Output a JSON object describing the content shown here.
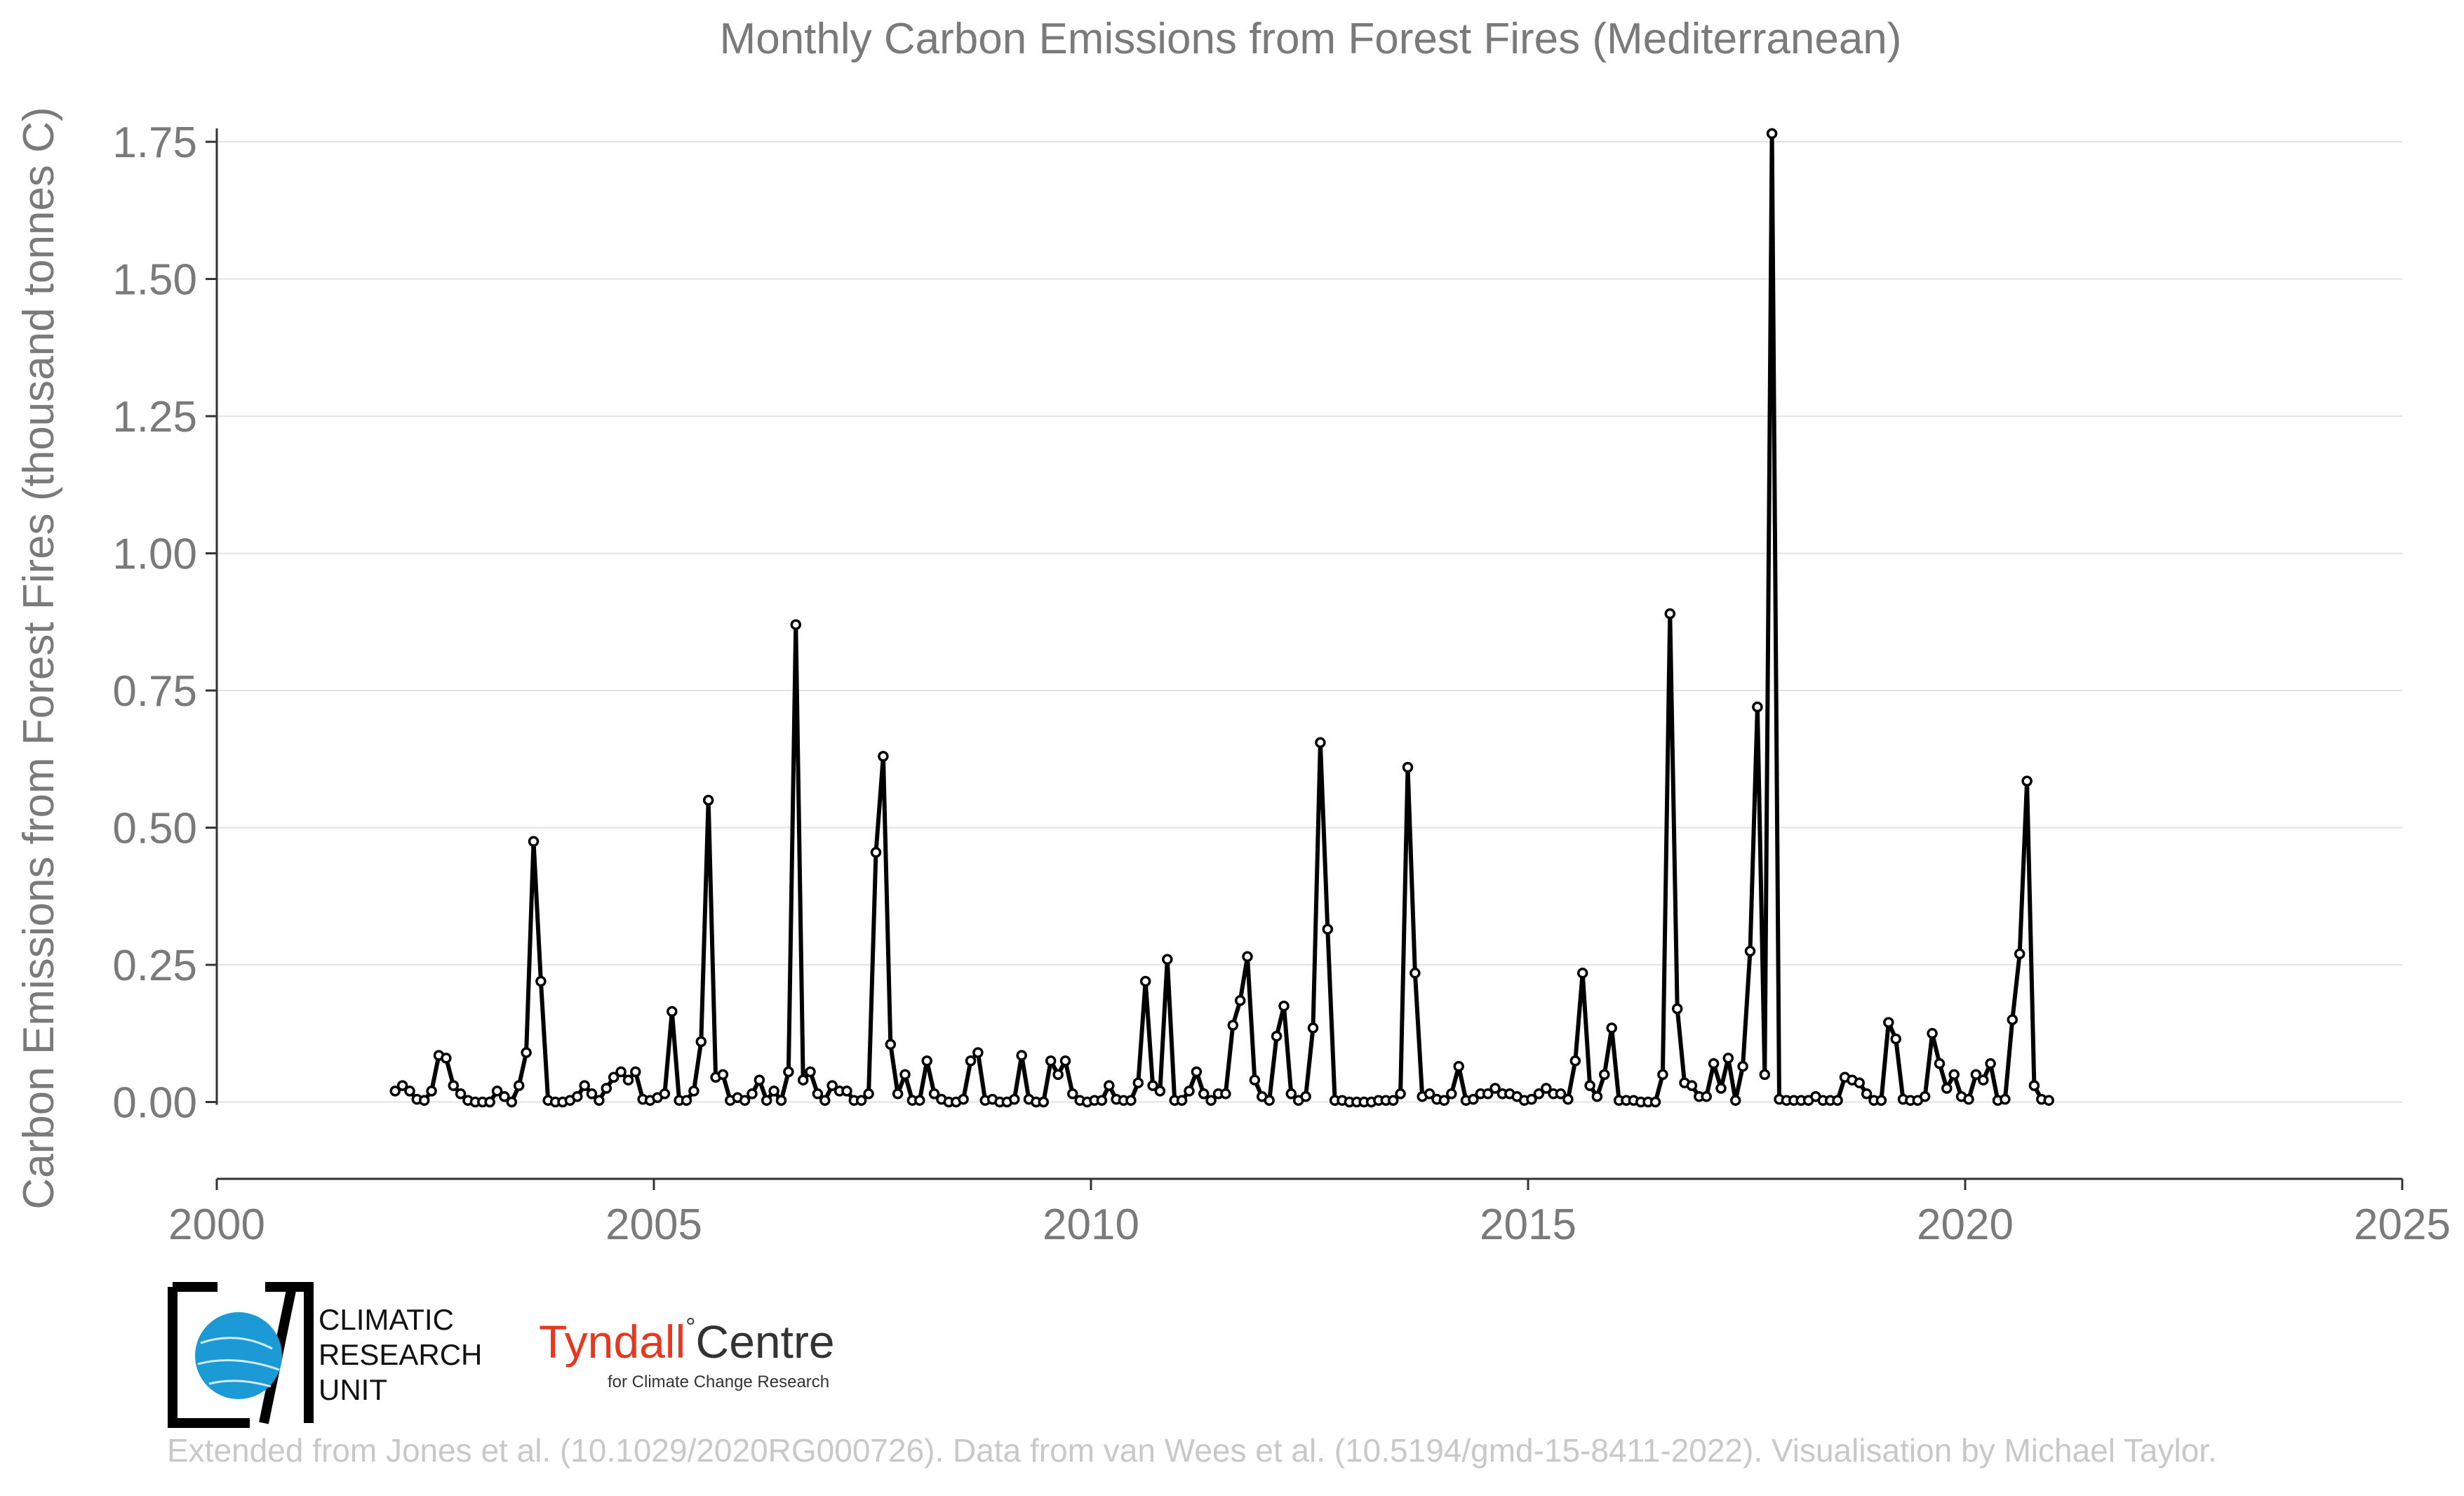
{
  "chart_data": {
    "type": "line",
    "title": "Monthly Carbon Emissions from Forest Fires (Mediterranean)",
    "xlabel": "",
    "ylabel": "Carbon Emissions from Forest Fires (thousand tonnes C)",
    "xlim": [
      2000,
      2025
    ],
    "ylim": [
      -0.14,
      1.8
    ],
    "x_ticks": [
      "2000",
      "2005",
      "2010",
      "2015",
      "2020",
      "2025"
    ],
    "y_ticks": [
      "0.00",
      "0.25",
      "0.50",
      "0.75",
      "1.00",
      "1.25",
      "1.50",
      "1.75"
    ],
    "grid": true,
    "legend": "none",
    "start": "2002-01",
    "series": [
      {
        "color": "#000000",
        "values": [
          0.02,
          0.03,
          0.02,
          0.005,
          0.003,
          0.02,
          0.085,
          0.08,
          0.03,
          0.015,
          0.003,
          0.0,
          0.0,
          0.0,
          0.02,
          0.01,
          0.0,
          0.03,
          0.09,
          0.475,
          0.22,
          0.003,
          0.0,
          0.0,
          0.003,
          0.01,
          0.03,
          0.015,
          0.003,
          0.025,
          0.045,
          0.055,
          0.04,
          0.055,
          0.005,
          0.003,
          0.008,
          0.015,
          0.165,
          0.003,
          0.003,
          0.02,
          0.11,
          0.55,
          0.045,
          0.05,
          0.003,
          0.008,
          0.003,
          0.015,
          0.04,
          0.003,
          0.02,
          0.003,
          0.055,
          0.87,
          0.04,
          0.055,
          0.015,
          0.003,
          0.03,
          0.02,
          0.02,
          0.003,
          0.003,
          0.015,
          0.455,
          0.63,
          0.105,
          0.015,
          0.05,
          0.003,
          0.003,
          0.075,
          0.015,
          0.005,
          0.0,
          0.0,
          0.005,
          0.075,
          0.09,
          0.003,
          0.005,
          0.0,
          0.0,
          0.005,
          0.085,
          0.005,
          0.0,
          0.0,
          0.075,
          0.05,
          0.075,
          0.015,
          0.003,
          0.0,
          0.003,
          0.003,
          0.03,
          0.005,
          0.003,
          0.003,
          0.035,
          0.22,
          0.03,
          0.02,
          0.26,
          0.003,
          0.003,
          0.02,
          0.055,
          0.015,
          0.003,
          0.015,
          0.015,
          0.14,
          0.185,
          0.265,
          0.04,
          0.01,
          0.003,
          0.12,
          0.175,
          0.015,
          0.003,
          0.01,
          0.135,
          0.655,
          0.315,
          0.003,
          0.003,
          0.0,
          0.0,
          0.0,
          0.0,
          0.003,
          0.003,
          0.003,
          0.015,
          0.61,
          0.235,
          0.01,
          0.015,
          0.005,
          0.003,
          0.015,
          0.065,
          0.003,
          0.005,
          0.015,
          0.015,
          0.025,
          0.015,
          0.015,
          0.01,
          0.003,
          0.005,
          0.015,
          0.025,
          0.015,
          0.015,
          0.005,
          0.075,
          0.235,
          0.03,
          0.01,
          0.05,
          0.135,
          0.003,
          0.003,
          0.003,
          0.0,
          0.0,
          0.0,
          0.05,
          0.89,
          0.17,
          0.035,
          0.03,
          0.01,
          0.01,
          0.07,
          0.025,
          0.08,
          0.003,
          0.065,
          0.275,
          0.72,
          0.05,
          1.765,
          0.005,
          0.003,
          0.003,
          0.003,
          0.003,
          0.01,
          0.003,
          0.003,
          0.003,
          0.045,
          0.04,
          0.035,
          0.015,
          0.003,
          0.003,
          0.145,
          0.115,
          0.005,
          0.003,
          0.003,
          0.01,
          0.125,
          0.07,
          0.025,
          0.05,
          0.01,
          0.005,
          0.05,
          0.04,
          0.07,
          0.003,
          0.005,
          0.15,
          0.27,
          0.585,
          0.03,
          0.005,
          0.003
        ]
      }
    ]
  },
  "logos": {
    "cru_line1": "CLIMATIC",
    "cru_line2": "RESEARCH",
    "cru_line3": "UNIT",
    "tyndall_red": "Tyndall",
    "tyndall_degree": "°",
    "tyndall_rest": "Centre",
    "tyndall_sub": "for Climate Change Research"
  },
  "footer": "Extended from Jones et al. (10.1029/2020RG000726). Data from van Wees et al. (10.5194/gmd-15-8411-2022). Visualisation by Michael Taylor."
}
